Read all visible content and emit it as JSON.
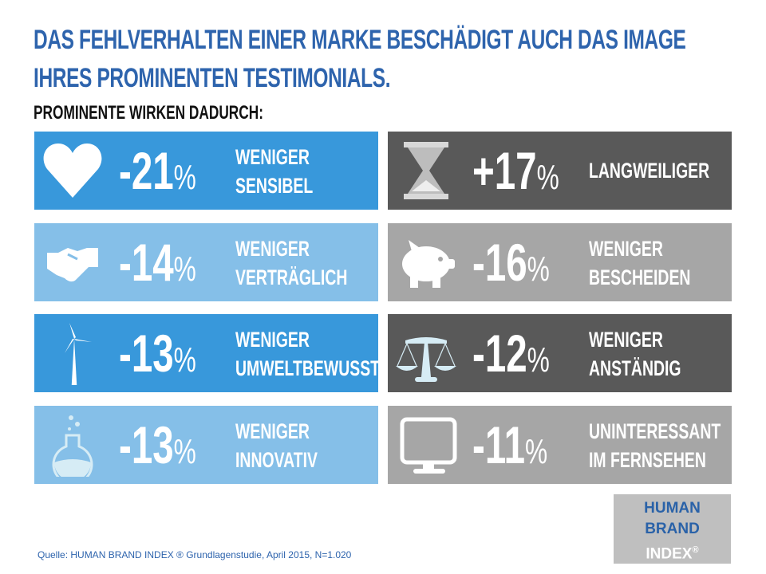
{
  "title_line1": "DAS FEHLVERHALTEN EINER MARKE BESCHÄDIGT AUCH DAS IMAGE",
  "title_line2": "IHRES PROMINENTEN TESTIMONIALS.",
  "subtitle": "PROMINENTE WIRKEN DADURCH:",
  "colors": {
    "title": "#2e64ad",
    "blue": "#3898db",
    "light_blue": "#85bfe8",
    "dark_grey": "#595959",
    "grey": "#a6a6a6"
  },
  "cards": [
    {
      "icon": "heart-icon",
      "value": "-21",
      "unit": "%",
      "line1": "WENIGER",
      "line2": "SENSIBEL"
    },
    {
      "icon": "hourglass-icon",
      "value": "+17",
      "unit": "%",
      "line1": "LANGWEILIGER",
      "line2": ""
    },
    {
      "icon": "handshake-icon",
      "value": "-14",
      "unit": "%",
      "line1": "WENIGER",
      "line2": "VERTRÄGLICH"
    },
    {
      "icon": "piggy-bank-icon",
      "value": "-16",
      "unit": "%",
      "line1": "WENIGER",
      "line2": "BESCHEIDEN"
    },
    {
      "icon": "wind-turbine-icon",
      "value": "-13",
      "unit": "%",
      "line1": "WENIGER",
      "line2": "UMWELTBEWUSST"
    },
    {
      "icon": "scales-icon",
      "value": "-12",
      "unit": "%",
      "line1": "WENIGER",
      "line2": "ANSTÄNDIG"
    },
    {
      "icon": "flask-icon",
      "value": "-13",
      "unit": "%",
      "line1": "WENIGER",
      "line2": "INNOVATIV"
    },
    {
      "icon": "monitor-icon",
      "value": "-11",
      "unit": "%",
      "line1": "UNINTERESSANT",
      "line2": "IM FERNSEHEN"
    }
  ],
  "source": "Quelle: HUMAN BRAND INDEX ® Grundlagenstudie,  April 2015, N=1.020",
  "logo": {
    "line1": "HUMAN",
    "line2": "BRAND",
    "line3": "INDEX",
    "mark": "®"
  }
}
